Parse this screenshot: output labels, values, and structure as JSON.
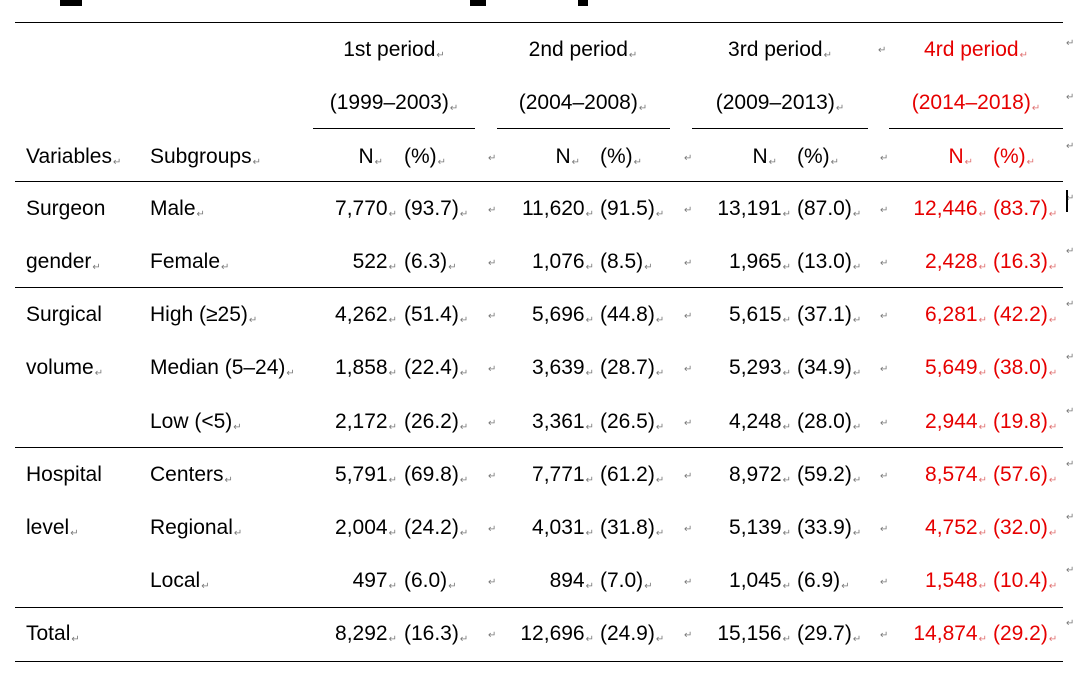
{
  "colors": {
    "highlight": "#e60000",
    "text": "#000000",
    "mark": "#7a7a7a"
  },
  "para_mark": "↵",
  "columns": {
    "variables": "Variables",
    "subgroups": "Subgroups",
    "n": "N",
    "pct": "(%)"
  },
  "periods": [
    {
      "name": "1st period",
      "range": "(1999–2003)"
    },
    {
      "name": "2nd period",
      "range": "(2004–2008)"
    },
    {
      "name": "3rd period",
      "range": "(2009–2013)"
    },
    {
      "name": "4rd period",
      "range": "(2014–2018)"
    }
  ],
  "rows": [
    {
      "variable": "Surgeon",
      "subgroup": "Male",
      "n": [
        "7,770",
        "11,620",
        "13,191",
        "12,446"
      ],
      "pct": [
        "(93.7)",
        "(91.5)",
        "(87.0)",
        "(83.7)"
      ]
    },
    {
      "variable": "gender",
      "subgroup": "Female",
      "n": [
        "522",
        "1,076",
        "1,965",
        "2,428"
      ],
      "pct": [
        "(6.3)",
        "(8.5)",
        "(13.0)",
        "(16.3)"
      ]
    },
    {
      "variable": "Surgical",
      "subgroup": "High (≥25)",
      "n": [
        "4,262",
        "5,696",
        "5,615",
        "6,281"
      ],
      "pct": [
        "(51.4)",
        "(44.8)",
        "(37.1)",
        "(42.2)"
      ]
    },
    {
      "variable": "volume",
      "subgroup": "Median (5–24)",
      "n": [
        "1,858",
        "3,639",
        "5,293",
        "5,649"
      ],
      "pct": [
        "(22.4)",
        "(28.7)",
        "(34.9)",
        "(38.0)"
      ]
    },
    {
      "variable": "",
      "subgroup": "Low (<5)",
      "n": [
        "2,172",
        "3,361",
        "4,248",
        "2,944"
      ],
      "pct": [
        "(26.2)",
        "(26.5)",
        "(28.0)",
        "(19.8)"
      ]
    },
    {
      "variable": "Hospital",
      "subgroup": "Centers",
      "n": [
        "5,791",
        "7,771",
        "8,972",
        "8,574"
      ],
      "pct": [
        "(69.8)",
        "(61.2)",
        "(59.2)",
        "(57.6)"
      ]
    },
    {
      "variable": "level",
      "subgroup": "Regional",
      "n": [
        "2,004",
        "4,031",
        "5,139",
        "4,752"
      ],
      "pct": [
        "(24.2)",
        "(31.8)",
        "(33.9)",
        "(32.0)"
      ]
    },
    {
      "variable": "",
      "subgroup": "Local",
      "n": [
        "497",
        "894",
        "1,045",
        "1,548"
      ],
      "pct": [
        "(6.0)",
        "(7.0)",
        "(6.9)",
        "(10.4)"
      ]
    },
    {
      "variable": "Total",
      "subgroup": "",
      "n": [
        "8,292",
        "12,696",
        "15,156",
        "14,874"
      ],
      "pct": [
        "(16.3)",
        "(24.9)",
        "(29.7)",
        "(29.2)"
      ]
    }
  ]
}
